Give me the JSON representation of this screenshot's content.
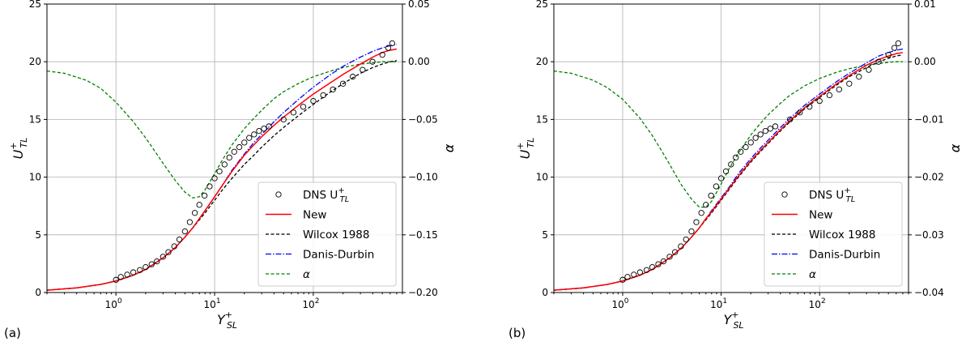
{
  "colors": {
    "dns": "#000000",
    "new": "#ff0000",
    "wilcox": "#000000",
    "danis": "#0000ff",
    "alpha": "#008000",
    "grid": "#b0b0b0"
  },
  "chart_data": [
    {
      "type": "line",
      "panel_label": "(a)",
      "xlabel_base": "Y",
      "xlabel_sup": "+",
      "xlabel_sub": "SL",
      "ylabel_base": "U",
      "ylabel_sup": "+",
      "ylabel_sub": "TL",
      "y2label": "α",
      "xscale": "log",
      "xlim": [
        0.2,
        800
      ],
      "xticks": [
        1,
        10,
        100
      ],
      "xtick_labels": [
        {
          "base": "10",
          "exp": "0"
        },
        {
          "base": "10",
          "exp": "1"
        },
        {
          "base": "10",
          "exp": "2"
        }
      ],
      "ylim": [
        0,
        25
      ],
      "yticks": [
        0,
        5,
        10,
        15,
        20,
        25
      ],
      "ytick_labels": [
        "0",
        "5",
        "10",
        "15",
        "20",
        "25"
      ],
      "y2lim": [
        -0.2,
        0.05
      ],
      "y2ticks": [
        -0.2,
        -0.15,
        -0.1,
        -0.05,
        0.0,
        0.05
      ],
      "y2tick_labels": [
        "−0.20",
        "−0.15",
        "−0.10",
        "−0.05",
        "0.00",
        "0.05"
      ],
      "grid": true,
      "legend_placement": "lower-right",
      "legend": [
        {
          "key": "dns",
          "label": "DNS U",
          "sup": "+",
          "sub": "TL",
          "style": "marker"
        },
        {
          "key": "new",
          "label": "New",
          "style": "solid"
        },
        {
          "key": "wilcox",
          "label": "Wilcox 1988",
          "style": "dashed"
        },
        {
          "key": "danis",
          "label": "Danis-Durbin",
          "style": "dashdot"
        },
        {
          "key": "alpha",
          "label": "α",
          "style": "dashed"
        }
      ],
      "dns_points": {
        "x": [
          1.0,
          1.12,
          1.3,
          1.5,
          1.75,
          2.0,
          2.3,
          2.6,
          3.0,
          3.4,
          3.9,
          4.4,
          5.0,
          5.6,
          6.3,
          7.0,
          7.9,
          8.9,
          10.0,
          11.2,
          12.6,
          14.1,
          15.8,
          17.8,
          20,
          22.4,
          25.1,
          28.2,
          31.6,
          35.5,
          50,
          63,
          79,
          100,
          126,
          158,
          200,
          251,
          316,
          398,
          501,
          575,
          630
        ],
        "y": [
          1.1,
          1.35,
          1.55,
          1.75,
          1.95,
          2.2,
          2.45,
          2.7,
          3.1,
          3.5,
          4.0,
          4.6,
          5.3,
          6.1,
          6.9,
          7.6,
          8.4,
          9.2,
          9.9,
          10.5,
          11.1,
          11.7,
          12.2,
          12.6,
          13.0,
          13.4,
          13.7,
          14.0,
          14.2,
          14.4,
          15.0,
          15.6,
          16.1,
          16.6,
          17.1,
          17.6,
          18.1,
          18.7,
          19.3,
          20.0,
          20.6,
          21.2,
          21.6
        ]
      },
      "curves": {
        "new": {
          "x": [
            0.2,
            0.4,
            0.7,
            1,
            1.5,
            2,
            3,
            4,
            5,
            6,
            7,
            8,
            10,
            12,
            15,
            20,
            25,
            30,
            40,
            50,
            70,
            100,
            150,
            200,
            300,
            400,
            500,
            600,
            700
          ],
          "y": [
            0.2,
            0.4,
            0.7,
            1.0,
            1.5,
            2.0,
            3.0,
            3.9,
            4.8,
            5.6,
            6.4,
            7.1,
            8.3,
            9.3,
            10.5,
            11.9,
            12.8,
            13.5,
            14.5,
            15.2,
            16.2,
            17.2,
            18.2,
            18.9,
            19.8,
            20.4,
            20.8,
            21.0,
            21.1
          ]
        },
        "wilcox": {
          "x": [
            0.2,
            0.4,
            0.7,
            1,
            1.5,
            2,
            3,
            4,
            5,
            6,
            7,
            8,
            10,
            12,
            15,
            20,
            25,
            30,
            40,
            50,
            70,
            100,
            150,
            200,
            300,
            400,
            500,
            600,
            700
          ],
          "y": [
            0.2,
            0.4,
            0.7,
            1.0,
            1.5,
            2.0,
            3.0,
            3.9,
            4.8,
            5.6,
            6.3,
            6.9,
            8.0,
            8.9,
            9.9,
            11.1,
            11.9,
            12.6,
            13.6,
            14.3,
            15.3,
            16.3,
            17.4,
            18.1,
            19.0,
            19.5,
            19.8,
            20.0,
            20.1
          ]
        },
        "danis": {
          "x": [
            0.2,
            0.4,
            0.7,
            1,
            1.5,
            2,
            3,
            4,
            5,
            6,
            7,
            8,
            10,
            12,
            15,
            20,
            25,
            30,
            40,
            50,
            70,
            100,
            150,
            200,
            300,
            400,
            500,
            600,
            700
          ],
          "y": [
            0.2,
            0.4,
            0.7,
            1.0,
            1.5,
            2.0,
            3.0,
            3.9,
            4.8,
            5.6,
            6.4,
            7.1,
            8.3,
            9.3,
            10.6,
            12.0,
            13.0,
            13.7,
            14.8,
            15.6,
            16.7,
            17.8,
            18.9,
            19.6,
            20.4,
            20.9,
            21.2,
            21.4,
            21.5
          ]
        },
        "alpha": {
          "x": [
            0.2,
            0.3,
            0.5,
            0.7,
            1,
            1.5,
            2,
            2.5,
            3,
            3.5,
            4,
            5,
            6,
            7,
            8,
            10,
            12,
            15,
            20,
            25,
            30,
            40,
            50,
            70,
            100,
            150,
            200,
            300,
            400,
            500,
            600,
            700
          ],
          "y": [
            -0.008,
            -0.01,
            -0.016,
            -0.023,
            -0.035,
            -0.052,
            -0.066,
            -0.078,
            -0.088,
            -0.096,
            -0.103,
            -0.113,
            -0.118,
            -0.117,
            -0.111,
            -0.097,
            -0.085,
            -0.072,
            -0.058,
            -0.049,
            -0.042,
            -0.032,
            -0.026,
            -0.019,
            -0.013,
            -0.008,
            -0.005,
            -0.002,
            -0.001,
            0.0,
            0.0,
            0.0
          ]
        }
      }
    },
    {
      "type": "line",
      "panel_label": "(b)",
      "xlabel_base": "Y",
      "xlabel_sup": "+",
      "xlabel_sub": "SL",
      "ylabel_base": "U",
      "ylabel_sup": "+",
      "ylabel_sub": "TL",
      "y2label": "α",
      "xscale": "log",
      "xlim": [
        0.2,
        800
      ],
      "xticks": [
        1,
        10,
        100
      ],
      "xtick_labels": [
        {
          "base": "10",
          "exp": "0"
        },
        {
          "base": "10",
          "exp": "1"
        },
        {
          "base": "10",
          "exp": "2"
        }
      ],
      "ylim": [
        0,
        25
      ],
      "yticks": [
        0,
        5,
        10,
        15,
        20,
        25
      ],
      "ytick_labels": [
        "0",
        "5",
        "10",
        "15",
        "20",
        "25"
      ],
      "y2lim": [
        -0.04,
        0.01
      ],
      "y2ticks": [
        -0.04,
        -0.03,
        -0.02,
        -0.01,
        0.0,
        0.01
      ],
      "y2tick_labels": [
        "−0.04",
        "−0.03",
        "−0.02",
        "−0.01",
        "0.00",
        "0.01"
      ],
      "grid": true,
      "legend_placement": "lower-right",
      "legend": [
        {
          "key": "dns",
          "label": "DNS U",
          "sup": "+",
          "sub": "TL",
          "style": "marker"
        },
        {
          "key": "new",
          "label": "New",
          "style": "solid"
        },
        {
          "key": "wilcox",
          "label": "Wilcox 1988",
          "style": "dashed"
        },
        {
          "key": "danis",
          "label": "Danis-Durbin",
          "style": "dashdot"
        },
        {
          "key": "alpha",
          "label": "α",
          "style": "dashed"
        }
      ],
      "dns_points": {
        "x": [
          1.0,
          1.12,
          1.3,
          1.5,
          1.75,
          2.0,
          2.3,
          2.6,
          3.0,
          3.4,
          3.9,
          4.4,
          5.0,
          5.6,
          6.3,
          7.0,
          7.9,
          8.9,
          10.0,
          11.2,
          12.6,
          14.1,
          15.8,
          17.8,
          20,
          22.4,
          25.1,
          28.2,
          31.6,
          35.5,
          50,
          63,
          79,
          100,
          126,
          158,
          200,
          251,
          316,
          398,
          501,
          575,
          630
        ],
        "y": [
          1.1,
          1.35,
          1.55,
          1.75,
          1.95,
          2.2,
          2.45,
          2.7,
          3.1,
          3.5,
          4.0,
          4.6,
          5.3,
          6.1,
          6.9,
          7.6,
          8.4,
          9.2,
          9.9,
          10.5,
          11.1,
          11.7,
          12.2,
          12.6,
          13.0,
          13.4,
          13.7,
          14.0,
          14.2,
          14.4,
          15.0,
          15.6,
          16.1,
          16.6,
          17.1,
          17.6,
          18.1,
          18.7,
          19.3,
          20.0,
          20.6,
          21.2,
          21.6
        ]
      },
      "curves": {
        "new": {
          "x": [
            0.2,
            0.4,
            0.7,
            1,
            1.5,
            2,
            3,
            4,
            5,
            6,
            7,
            8,
            10,
            12,
            15,
            20,
            25,
            30,
            40,
            50,
            70,
            100,
            150,
            200,
            300,
            400,
            500,
            600,
            700
          ],
          "y": [
            0.2,
            0.4,
            0.7,
            1.0,
            1.5,
            2.0,
            3.0,
            3.9,
            4.8,
            5.6,
            6.4,
            7.0,
            8.1,
            9.0,
            10.1,
            11.4,
            12.3,
            13.0,
            14.1,
            14.9,
            16.0,
            17.0,
            18.1,
            18.8,
            19.7,
            20.2,
            20.5,
            20.7,
            20.8
          ]
        },
        "wilcox": {
          "x": [
            0.2,
            0.4,
            0.7,
            1,
            1.5,
            2,
            3,
            4,
            5,
            6,
            7,
            8,
            10,
            12,
            15,
            20,
            25,
            30,
            40,
            50,
            70,
            100,
            150,
            200,
            300,
            400,
            500,
            600,
            700
          ],
          "y": [
            0.2,
            0.4,
            0.7,
            1.0,
            1.5,
            2.0,
            3.0,
            3.9,
            4.8,
            5.6,
            6.3,
            6.9,
            8.0,
            8.9,
            10.0,
            11.3,
            12.2,
            12.9,
            14.0,
            14.8,
            15.9,
            16.9,
            18.0,
            18.7,
            19.5,
            20.0,
            20.3,
            20.5,
            20.6
          ]
        },
        "danis": {
          "x": [
            0.2,
            0.4,
            0.7,
            1,
            1.5,
            2,
            3,
            4,
            5,
            6,
            7,
            8,
            10,
            12,
            15,
            20,
            25,
            30,
            40,
            50,
            70,
            100,
            150,
            200,
            300,
            400,
            500,
            600,
            700
          ],
          "y": [
            0.2,
            0.4,
            0.7,
            1.0,
            1.5,
            2.0,
            3.0,
            3.9,
            4.8,
            5.6,
            6.4,
            7.1,
            8.2,
            9.1,
            10.3,
            11.6,
            12.5,
            13.2,
            14.3,
            15.1,
            16.2,
            17.2,
            18.3,
            19.0,
            19.9,
            20.5,
            20.8,
            21.0,
            21.1
          ]
        },
        "alpha": {
          "x": [
            0.2,
            0.3,
            0.5,
            0.7,
            1,
            1.5,
            2,
            2.5,
            3,
            3.5,
            4,
            5,
            6,
            7,
            8,
            10,
            12,
            15,
            20,
            25,
            30,
            40,
            50,
            70,
            100,
            150,
            200,
            300,
            400,
            500,
            600,
            700
          ],
          "y": [
            -0.0016,
            -0.002,
            -0.0032,
            -0.0045,
            -0.0065,
            -0.0098,
            -0.0128,
            -0.0155,
            -0.0178,
            -0.0198,
            -0.0215,
            -0.0238,
            -0.0252,
            -0.0252,
            -0.0242,
            -0.0212,
            -0.0186,
            -0.0158,
            -0.0127,
            -0.0107,
            -0.0092,
            -0.0072,
            -0.0058,
            -0.0042,
            -0.0029,
            -0.0018,
            -0.0012,
            -0.0006,
            -0.0003,
            -0.0001,
            0.0,
            0.0
          ]
        }
      }
    }
  ]
}
